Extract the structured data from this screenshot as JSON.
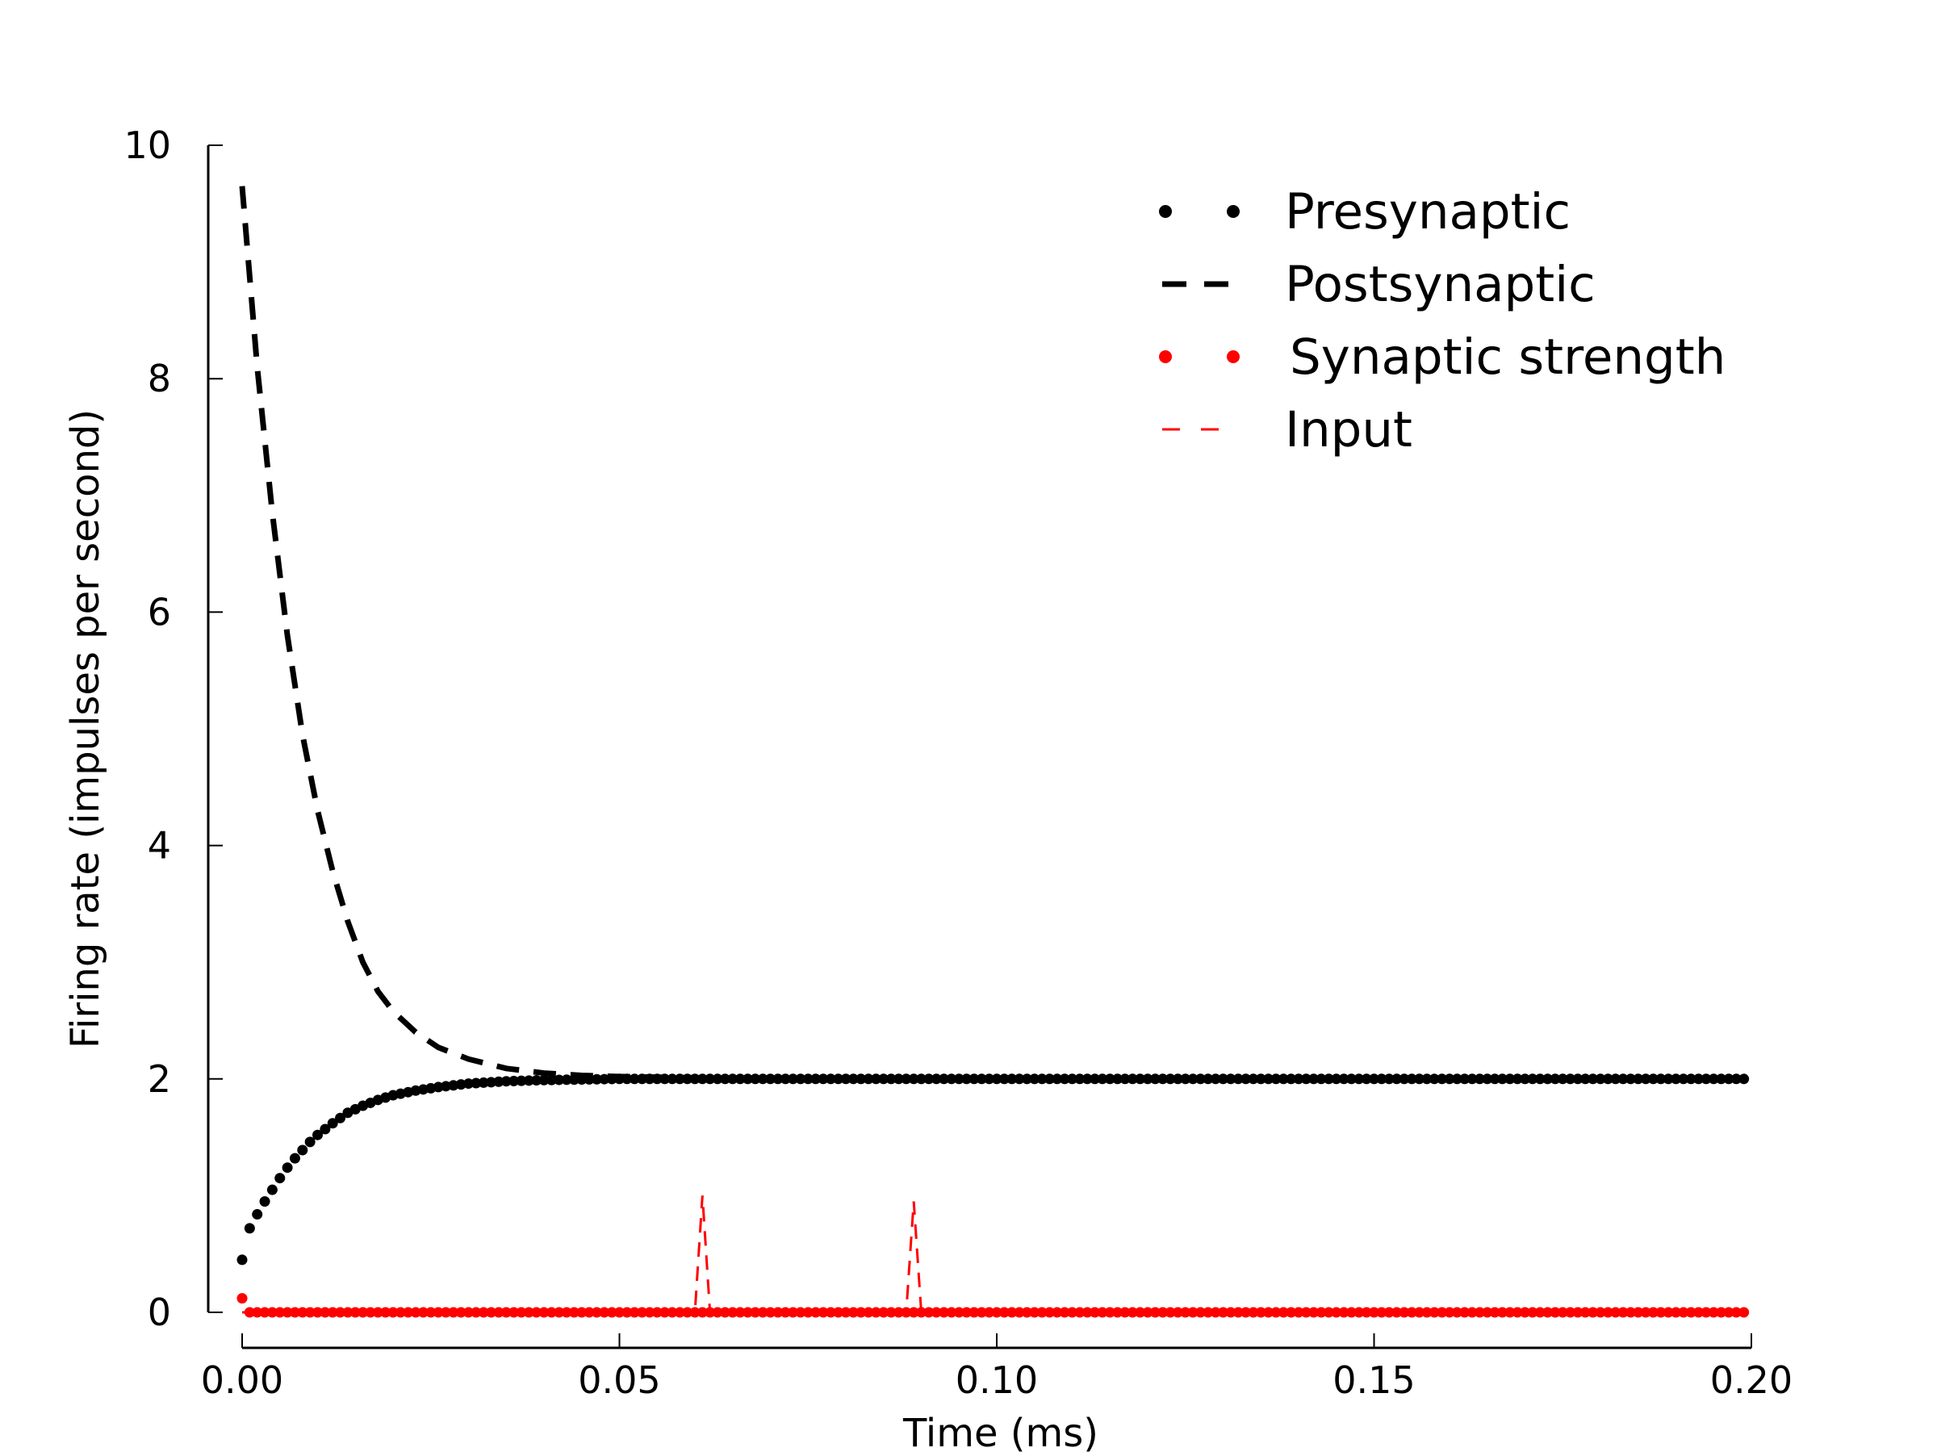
{
  "chart_data": {
    "type": "line",
    "xlabel": "Time (ms)",
    "ylabel": "Firing rate (impulses per second)",
    "xlim": [
      0.0,
      0.2
    ],
    "ylim": [
      0,
      10
    ],
    "xticks": [
      "0.00",
      "0.05",
      "0.10",
      "0.15",
      "0.20"
    ],
    "yticks": [
      "0",
      "2",
      "4",
      "6",
      "8",
      "10"
    ],
    "grid": false,
    "legend_position": "top-right",
    "series": [
      {
        "name": "Presynaptic",
        "style": "dots",
        "color": "#000000",
        "x": [
          0.0,
          0.001,
          0.002,
          0.003,
          0.004,
          0.005,
          0.006,
          0.007,
          0.008,
          0.009,
          0.01,
          0.012,
          0.014,
          0.016,
          0.018,
          0.02,
          0.023,
          0.026,
          0.03,
          0.035,
          0.04,
          0.05,
          0.06,
          0.07,
          0.08,
          0.09,
          0.1,
          0.11,
          0.12,
          0.13,
          0.14,
          0.15,
          0.16,
          0.17,
          0.18,
          0.19,
          0.199
        ],
        "values": [
          0.45,
          0.72,
          0.84,
          0.95,
          1.05,
          1.15,
          1.24,
          1.32,
          1.39,
          1.46,
          1.52,
          1.62,
          1.71,
          1.77,
          1.82,
          1.86,
          1.9,
          1.93,
          1.96,
          1.98,
          1.99,
          2.0,
          2.0,
          2.0,
          2.0,
          2.0,
          2.0,
          2.0,
          2.0,
          2.0,
          2.0,
          2.0,
          2.0,
          2.0,
          2.0,
          2.0,
          2.0
        ]
      },
      {
        "name": "Postsynaptic",
        "style": "dashed",
        "color": "#000000",
        "x": [
          0.0,
          0.002,
          0.004,
          0.006,
          0.008,
          0.01,
          0.012,
          0.014,
          0.016,
          0.018,
          0.02,
          0.023,
          0.026,
          0.03,
          0.035,
          0.04,
          0.045,
          0.05,
          0.06,
          0.07,
          0.08,
          0.09,
          0.1,
          0.11
        ],
        "values": [
          9.65,
          8.1,
          6.85,
          5.8,
          4.95,
          4.3,
          3.78,
          3.35,
          3.0,
          2.75,
          2.58,
          2.4,
          2.27,
          2.17,
          2.09,
          2.05,
          2.03,
          2.02,
          2.01,
          2.0,
          2.0,
          2.0,
          2.0,
          2.0
        ]
      },
      {
        "name": "Synaptic strength",
        "style": "dots",
        "color": "#ff0000",
        "x": [
          0.0,
          0.001,
          0.01,
          0.02,
          0.03,
          0.04,
          0.05,
          0.06,
          0.07,
          0.08,
          0.09,
          0.1,
          0.11,
          0.12,
          0.13,
          0.14,
          0.15,
          0.16,
          0.17,
          0.18,
          0.19,
          0.199
        ],
        "values": [
          0.12,
          0.0,
          0.0,
          0.0,
          0.0,
          0.0,
          0.0,
          0.0,
          0.0,
          0.0,
          0.0,
          0.0,
          0.0,
          0.0,
          0.0,
          0.0,
          0.0,
          0.0,
          0.0,
          0.0,
          0.0,
          0.0
        ]
      },
      {
        "name": "Input",
        "style": "dashed",
        "color": "#ff0000",
        "x": [
          0.0,
          0.06,
          0.061,
          0.062,
          0.063,
          0.088,
          0.089,
          0.09,
          0.091,
          0.2
        ],
        "values": [
          0,
          0,
          1.0,
          0,
          0,
          0,
          0.95,
          0,
          0,
          0
        ]
      }
    ]
  }
}
